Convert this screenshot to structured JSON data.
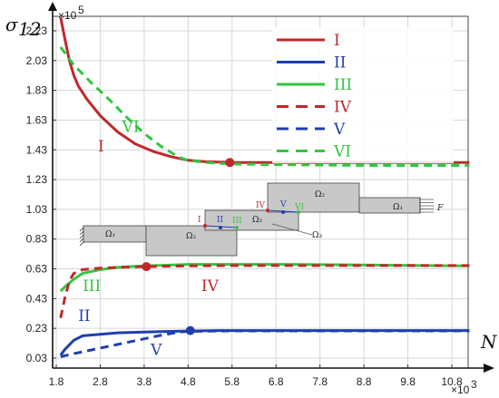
{
  "chart_data": {
    "type": "line",
    "ylabel": "σ",
    "ylabel_sub": "12",
    "xlabel": "N",
    "y_multiplier": "×10",
    "y_multiplier_exp": "5",
    "x_multiplier": "×10",
    "x_multiplier_exp": "3",
    "xlim": [
      1.8,
      11.7
    ],
    "ylim": [
      0.03,
      2.4
    ],
    "xticks": [
      "1.8",
      "2.8",
      "3.8",
      "4.8",
      "5.8",
      "6.8",
      "7.8",
      "8.8",
      "9.8",
      "10.8"
    ],
    "yticks": [
      "0.03",
      "0.23",
      "0.43",
      "0.63",
      "0.83",
      "1.03",
      "1.23",
      "1.43",
      "1.63",
      "1.83",
      "2.03",
      "2.23"
    ],
    "grid": true,
    "legend": "top-right",
    "series": [
      {
        "name": "I",
        "color": "#c0282c",
        "dash": "solid",
        "x": [
          1.9,
          2.0,
          2.1,
          2.2,
          2.3,
          2.5,
          2.8,
          3.2,
          3.6,
          4.0,
          4.4,
          4.8,
          5.2,
          5.8,
          7.0,
          9.0,
          11.2
        ],
        "y": [
          2.32,
          2.17,
          2.03,
          1.93,
          1.86,
          1.77,
          1.66,
          1.55,
          1.47,
          1.42,
          1.385,
          1.36,
          1.35,
          1.345,
          1.345,
          1.345,
          1.345
        ]
      },
      {
        "name": "II",
        "color": "#1f3faf",
        "dash": "solid",
        "x": [
          1.9,
          2.0,
          2.2,
          2.4,
          2.8,
          3.2,
          3.8,
          4.4,
          4.8,
          5.5,
          7.0,
          9.0,
          11.2
        ],
        "y": [
          0.05,
          0.09,
          0.15,
          0.18,
          0.19,
          0.2,
          0.205,
          0.21,
          0.212,
          0.215,
          0.215,
          0.215,
          0.215
        ]
      },
      {
        "name": "III",
        "color": "#33c640",
        "dash": "solid",
        "x": [
          1.9,
          2.0,
          2.2,
          2.4,
          2.8,
          3.2,
          3.8,
          4.4,
          4.8,
          5.8,
          7.0,
          9.0,
          11.2
        ],
        "y": [
          0.48,
          0.51,
          0.56,
          0.6,
          0.625,
          0.64,
          0.65,
          0.655,
          0.66,
          0.66,
          0.66,
          0.655,
          0.65
        ]
      },
      {
        "name": "IV",
        "color": "#c0282c",
        "dash": "dash",
        "x": [
          1.9,
          2.0,
          2.1,
          2.2,
          2.4,
          2.8,
          3.2,
          3.8,
          4.4,
          4.8,
          5.8,
          7.0,
          9.0,
          11.2
        ],
        "y": [
          0.3,
          0.44,
          0.55,
          0.6,
          0.625,
          0.635,
          0.64,
          0.645,
          0.648,
          0.65,
          0.652,
          0.652,
          0.652,
          0.652
        ]
      },
      {
        "name": "V",
        "color": "#1f3faf",
        "dash": "dash",
        "x": [
          1.9,
          2.2,
          2.6,
          3.0,
          3.4,
          3.8,
          4.2,
          4.6,
          4.8,
          5.8,
          7.0,
          9.0,
          11.2
        ],
        "y": [
          0.04,
          0.06,
          0.085,
          0.11,
          0.135,
          0.16,
          0.185,
          0.205,
          0.21,
          0.213,
          0.213,
          0.213,
          0.213
        ]
      },
      {
        "name": "VI",
        "color": "#33c640",
        "dash": "dash",
        "x": [
          1.9,
          2.2,
          2.6,
          3.0,
          3.4,
          3.8,
          4.2,
          4.6,
          4.8,
          5.2,
          5.8,
          7.0,
          9.0,
          11.2
        ],
        "y": [
          2.12,
          2.0,
          1.88,
          1.77,
          1.65,
          1.54,
          1.45,
          1.38,
          1.36,
          1.345,
          1.335,
          1.33,
          1.325,
          1.325
        ]
      }
    ],
    "markers": [
      {
        "x": 5.75,
        "y": 1.345,
        "color": "#c0282c",
        "series": "I"
      },
      {
        "x": 3.85,
        "y": 0.645,
        "color": "#c0282c",
        "series": "IV"
      },
      {
        "x": 4.85,
        "y": 0.215,
        "color": "#1f3faf",
        "series": "II"
      }
    ],
    "curve_labels": [
      {
        "text": "VI",
        "x": 3.3,
        "y": 1.55,
        "color": "#33c640"
      },
      {
        "text": "I",
        "x": 2.75,
        "y": 1.42,
        "color": "#c0282c"
      },
      {
        "text": "III",
        "x": 2.4,
        "y": 0.48,
        "color": "#33c640"
      },
      {
        "text": "IV",
        "x": 5.1,
        "y": 0.48,
        "color": "#c0282c"
      },
      {
        "text": "II",
        "x": 2.3,
        "y": 0.28,
        "color": "#1f3faf"
      },
      {
        "text": "V",
        "x": 3.95,
        "y": 0.05,
        "color": "#1f3faf"
      }
    ],
    "inset": {
      "omega1_left": "Ω₁",
      "omega2_bottom": "Ω₂",
      "omega2_mid": "Ω₂",
      "omega2_top": "Ω₂",
      "omega1_right": "Ω₁",
      "omega3": "Ω₃",
      "force": "F",
      "points": [
        {
          "label": "I",
          "color": "#c0282c"
        },
        {
          "label": "II",
          "color": "#1f3faf"
        },
        {
          "label": "III",
          "color": "#33c640"
        },
        {
          "label": "IV",
          "color": "#c0282c"
        },
        {
          "label": "V",
          "color": "#1f3faf"
        },
        {
          "label": "VI",
          "color": "#33c640"
        }
      ]
    }
  }
}
